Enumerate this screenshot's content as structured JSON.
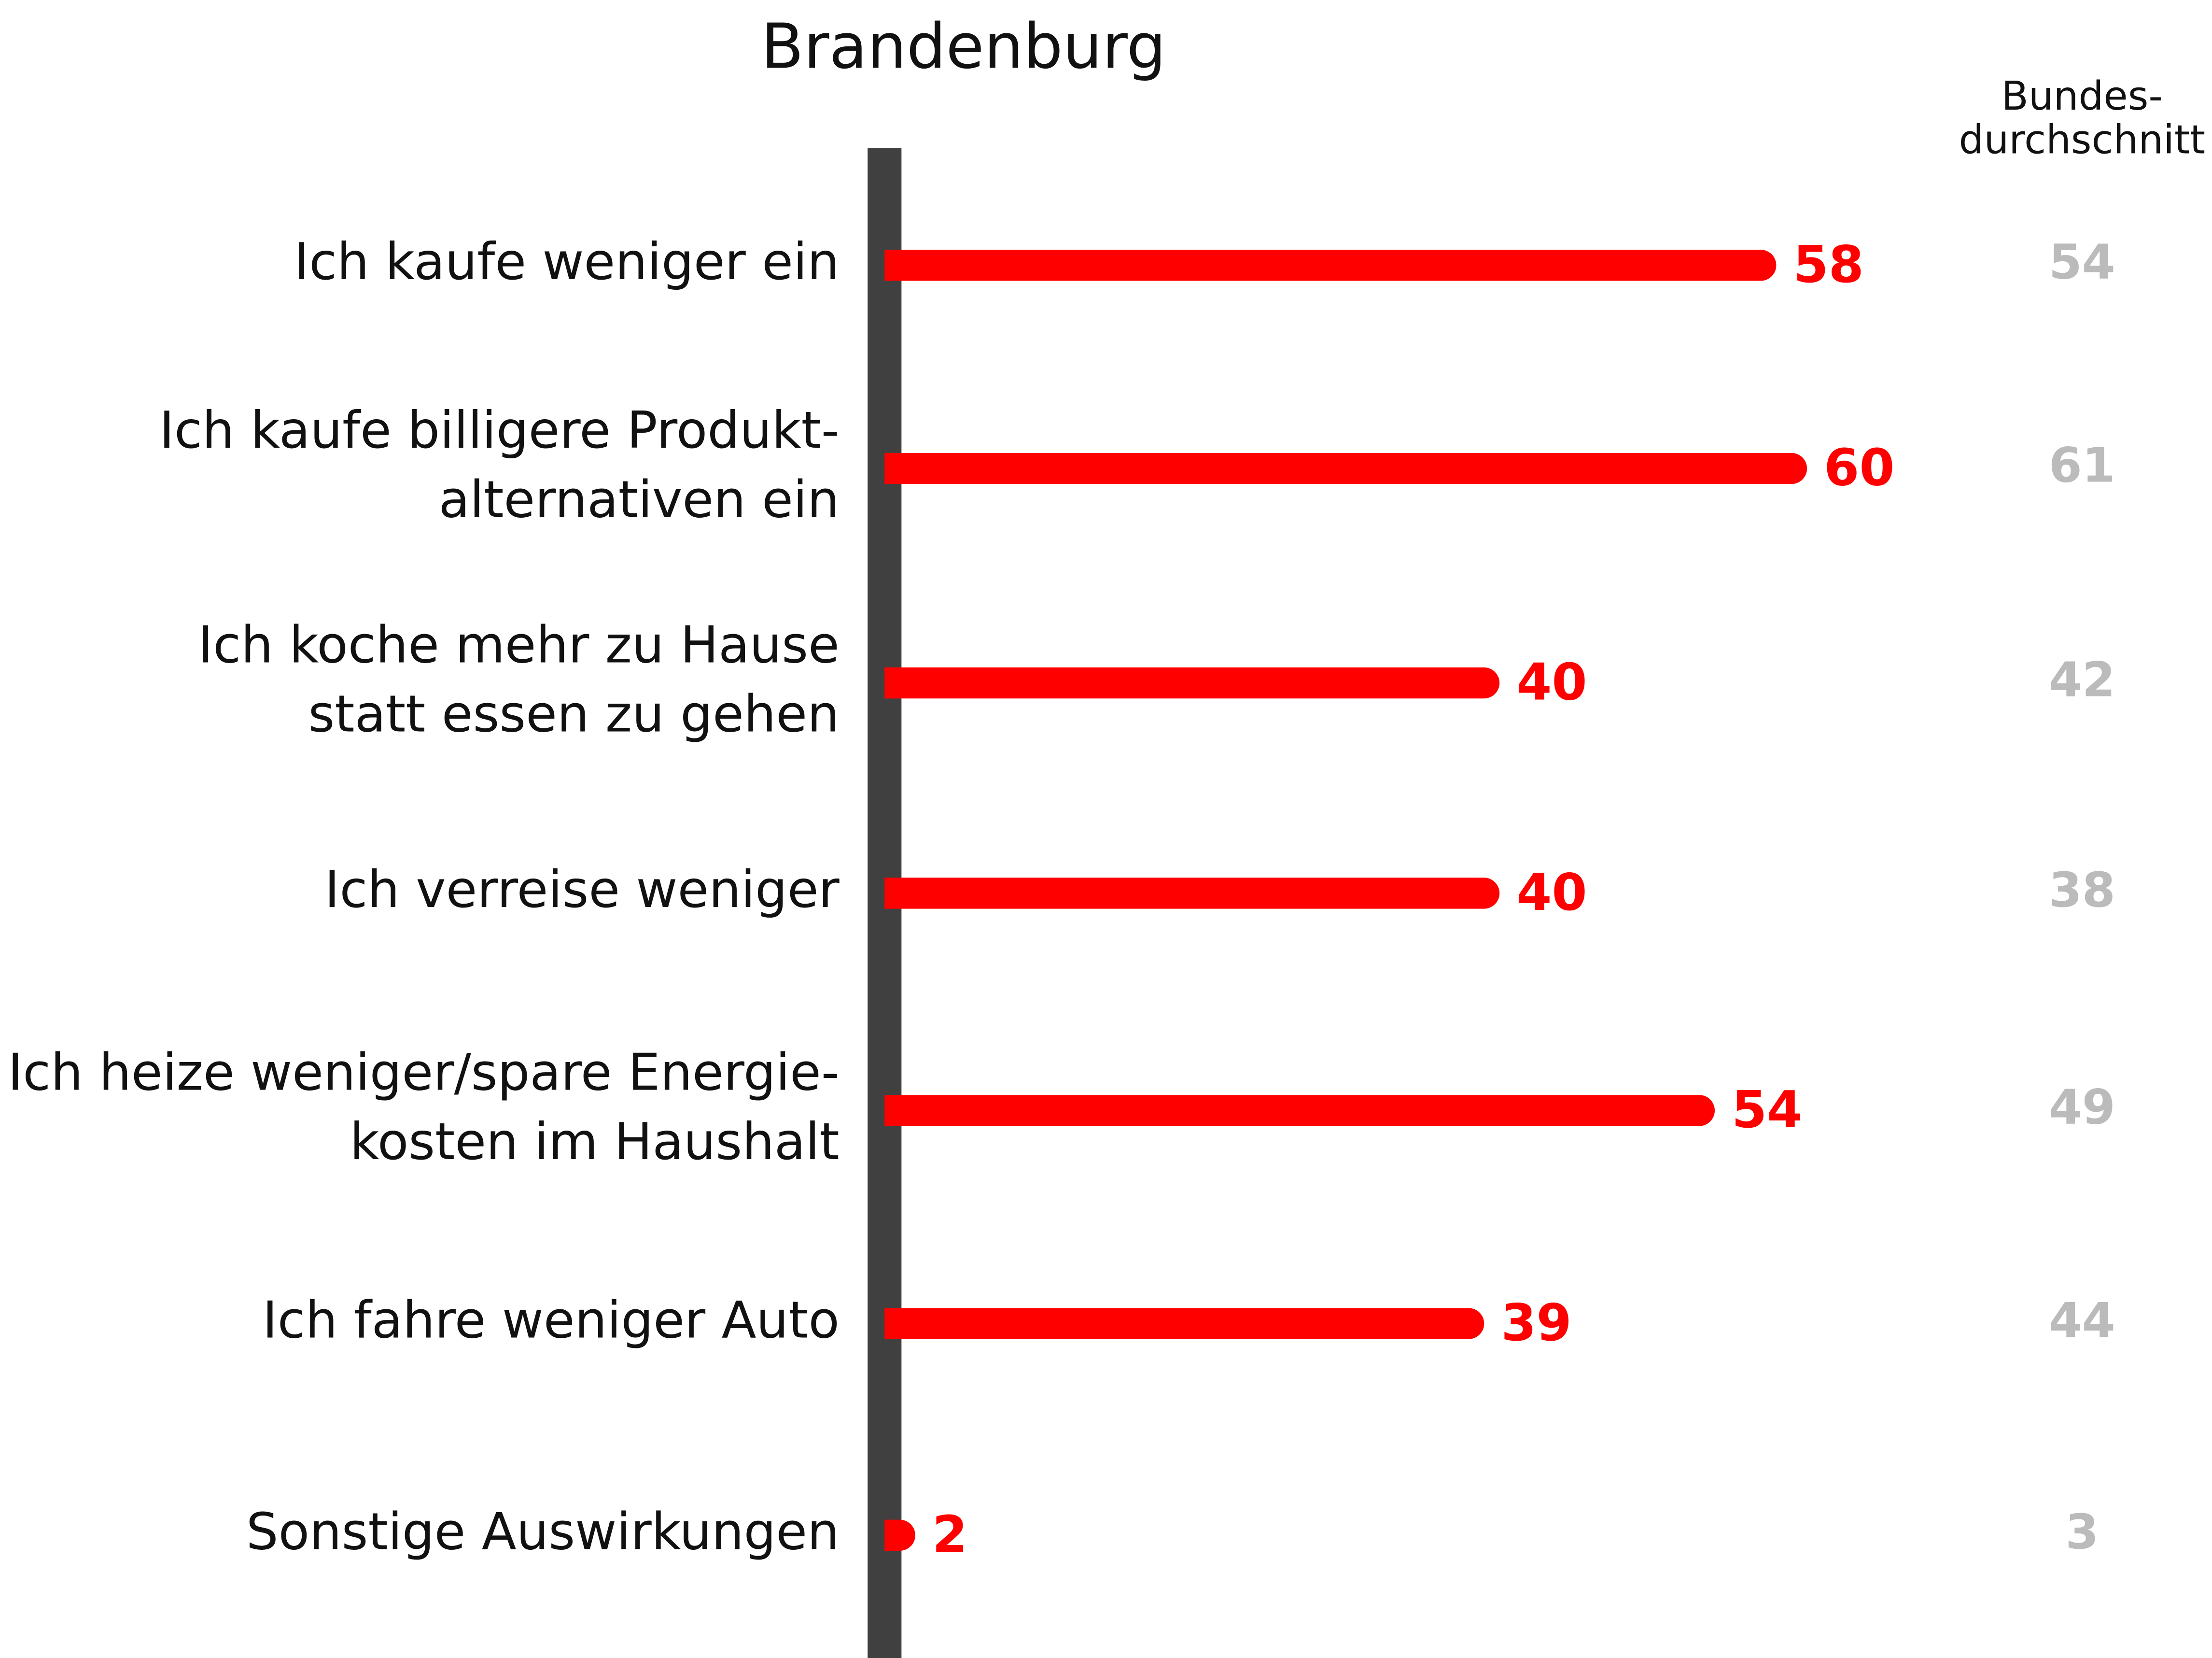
{
  "chart_data": {
    "type": "bar",
    "orientation": "horizontal",
    "title": "Brandenburg",
    "categories": [
      [
        "Ich kaufe weniger ein"
      ],
      [
        "Ich kaufe billigere Produkt-",
        "alternativen ein"
      ],
      [
        "Ich koche mehr zu Hause",
        "statt essen zu gehen"
      ],
      [
        "Ich verreise weniger"
      ],
      [
        "Ich heize weniger/spare Energie-",
        "kosten im Haushalt"
      ],
      [
        "Ich fahre weniger Auto"
      ],
      [
        "Sonstige Auswirkungen"
      ]
    ],
    "series": [
      {
        "name": "Brandenburg",
        "color": "#ff0000",
        "values": [
          58,
          60,
          40,
          40,
          54,
          39,
          2
        ]
      },
      {
        "name": [
          "Bundes-",
          "durchschnitt"
        ],
        "color": "#bbbbbb",
        "values": [
          54,
          61,
          42,
          38,
          49,
          44,
          3
        ]
      }
    ],
    "xlim": [
      0,
      80
    ],
    "axis_color": "#404040"
  }
}
